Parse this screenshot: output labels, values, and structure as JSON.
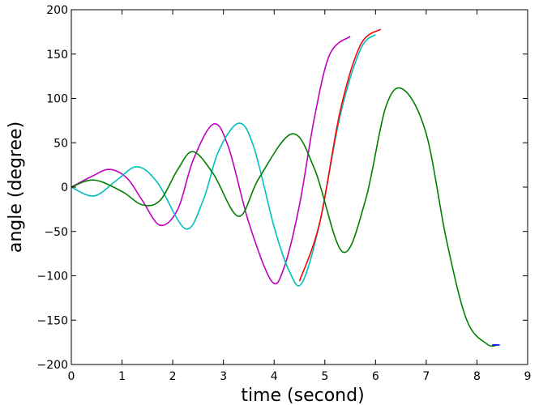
{
  "chart_data": {
    "type": "line",
    "xlabel": "time (second)",
    "ylabel": "angle (degree)",
    "xlim": [
      0,
      9
    ],
    "ylim": [
      -200,
      200
    ],
    "xticks": [
      0,
      1,
      2,
      3,
      4,
      5,
      6,
      7,
      8,
      9
    ],
    "yticks": [
      -200,
      -150,
      -100,
      -50,
      0,
      50,
      100,
      150,
      200
    ],
    "grid": false,
    "legend": "none",
    "series": [
      {
        "color": "#bf00bf",
        "x": [
          0,
          0.4,
          0.75,
          1.1,
          1.4,
          1.75,
          2.1,
          2.4,
          2.8,
          3.1,
          3.5,
          3.95,
          4.2,
          4.5,
          4.8,
          5.1,
          5.5
        ],
        "y": [
          0,
          12,
          20,
          10,
          -15,
          -43,
          -25,
          30,
          71,
          45,
          -40,
          -106,
          -90,
          -20,
          80,
          150,
          170
        ]
      },
      {
        "color": "#00bfbf",
        "x": [
          0,
          0.45,
          0.9,
          1.3,
          1.7,
          2.25,
          2.6,
          2.9,
          3.3,
          3.6,
          4.0,
          4.3,
          4.55,
          4.9,
          5.3,
          5.7,
          6.0
        ],
        "y": [
          0,
          -10,
          8,
          23,
          5,
          -47,
          -15,
          40,
          72,
          45,
          -45,
          -95,
          -108,
          -40,
          80,
          155,
          172
        ]
      },
      {
        "color": "#ff0000",
        "x": [
          4.5,
          4.9,
          5.3,
          5.7,
          6.1
        ],
        "y": [
          -106,
          -40,
          85,
          160,
          178
        ]
      },
      {
        "color": "#007f00",
        "x": [
          0,
          0.45,
          1.0,
          1.4,
          1.75,
          2.1,
          2.4,
          2.8,
          3.3,
          3.7,
          4.35,
          4.8,
          5.35,
          5.8,
          6.2,
          6.55,
          7.0,
          7.4,
          7.8,
          8.2,
          8.4
        ],
        "y": [
          0,
          8,
          -5,
          -20,
          -15,
          20,
          40,
          15,
          -33,
          10,
          60,
          20,
          -73,
          -15,
          90,
          110,
          60,
          -60,
          -150,
          -177,
          -178
        ]
      },
      {
        "color": "#0000ff",
        "x": [
          8.3,
          8.45
        ],
        "y": [
          -178,
          -178
        ]
      }
    ]
  }
}
